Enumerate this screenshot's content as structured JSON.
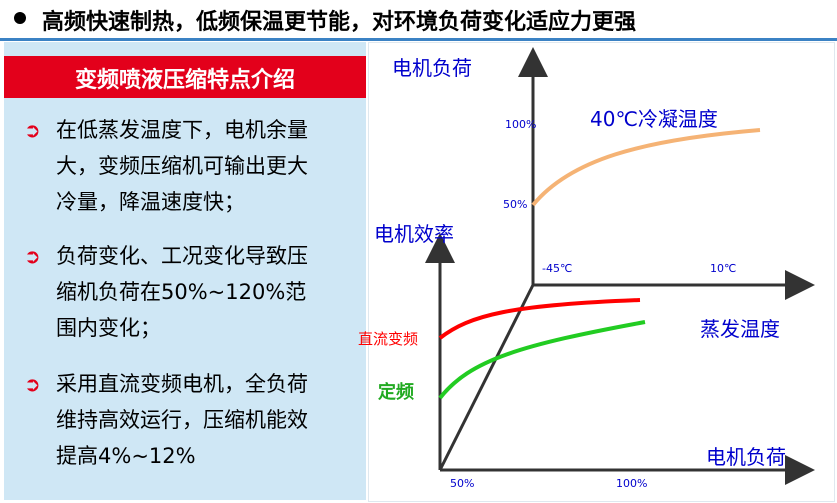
{
  "header": {
    "title": "高频快速制热，低频保温更节能，对环境负荷变化适应力更强"
  },
  "panel": {
    "title": "变频喷液压缩特点介绍",
    "items": [
      {
        "lines": [
          "在低蒸发温度下，电机余量",
          "大，变频压缩机可输出更大",
          "冷量，降温速度快；"
        ]
      },
      {
        "lines": [
          "负荷变化、工况变化导致压",
          "缩机负荷在50%~120%范",
          "围内变化；"
        ]
      },
      {
        "lines": [
          "采用直流变频电机，全负荷",
          "维持高效运行，压缩机能效",
          "提高4%~12%"
        ]
      }
    ]
  },
  "diagram": {
    "upper_axis_label": "电机负荷",
    "efficiency_axis_label": "电机效率",
    "evap_axis_label": "蒸发温度",
    "load_axis_label": "电机负荷",
    "condense_label": "40℃冷凝温度",
    "tick_100_upper": "100%",
    "tick_50_upper": "50%",
    "tick_m45": "-45℃",
    "tick_10": "10℃",
    "tick_50_bottom": "50%",
    "tick_100_bottom": "100%",
    "dc_label": "直流变频",
    "fixed_label": "定频",
    "colors": {
      "dc": "#ff0000",
      "fixed": "#22cc22",
      "condense": "#f5b375",
      "axis_text": "#0000cc"
    }
  }
}
